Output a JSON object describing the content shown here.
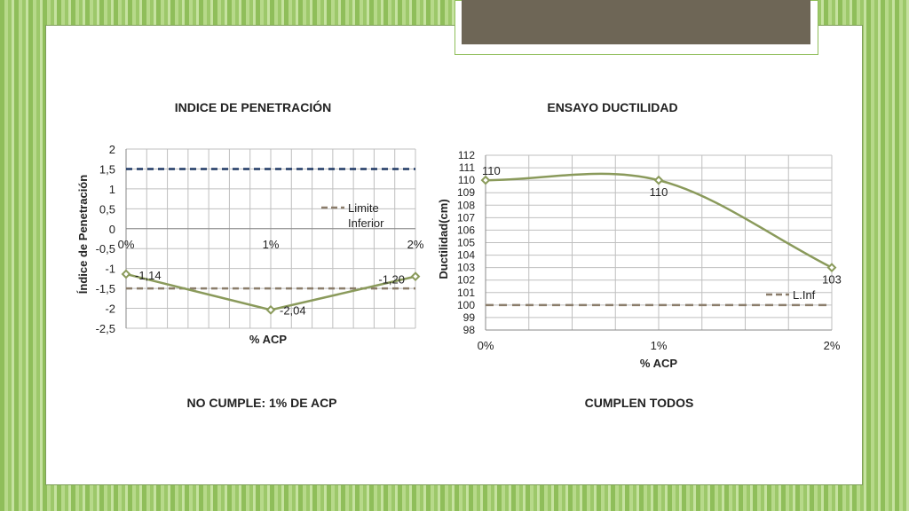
{
  "slide": {
    "verdict_left": "NO CUMPLE: 1% DE ACP",
    "verdict_right": "CUMPLEN TODOS"
  },
  "colors": {
    "series": "#8a9a5b",
    "limit_low": "#8b7d6b",
    "limit_high": "#1f3864",
    "grid": "#bfbfbf"
  },
  "chart_data": [
    {
      "type": "line",
      "title": "INDICE DE PENETRACIÓN",
      "xlabel": "% ACP",
      "ylabel": "Índice de Penetración",
      "categories": [
        "0%",
        "1%",
        "2%"
      ],
      "ylim": [
        -2.5,
        2
      ],
      "yticks": [
        "2",
        "1,5",
        "1",
        "0,5",
        "0",
        "-0,5",
        "-1",
        "-1,5",
        "-2",
        "-2,5"
      ],
      "series": [
        {
          "name": "",
          "values": [
            -1.14,
            -2.04,
            -1.2
          ],
          "labels": [
            "-1,14",
            "-2,04",
            "-1,20"
          ]
        },
        {
          "name": "Limite Inferior",
          "values": [
            -1.5,
            -1.5,
            -1.5
          ]
        },
        {
          "name": "",
          "values": [
            1.5,
            1.5,
            1.5
          ]
        }
      ],
      "legend": {
        "position": "right",
        "lines": [
          "Limite",
          "Inferior"
        ]
      },
      "grid": true
    },
    {
      "type": "line",
      "title": "ENSAYO DUCTILIDAD",
      "xlabel": "% ACP",
      "ylabel": "Ductilidad(cm)",
      "categories": [
        "0%",
        "1%",
        "2%"
      ],
      "ylim": [
        98,
        112
      ],
      "yticks": [
        "112",
        "111",
        "110",
        "109",
        "108",
        "107",
        "106",
        "105",
        "104",
        "103",
        "102",
        "101",
        "100",
        "99",
        "98"
      ],
      "series": [
        {
          "name": "",
          "values": [
            110,
            110,
            103
          ],
          "labels": [
            "110",
            "110",
            "103"
          ],
          "smooth": true
        },
        {
          "name": "L.Inf",
          "values": [
            100,
            100,
            100
          ]
        }
      ],
      "legend": {
        "position": "right"
      },
      "grid": true
    }
  ]
}
